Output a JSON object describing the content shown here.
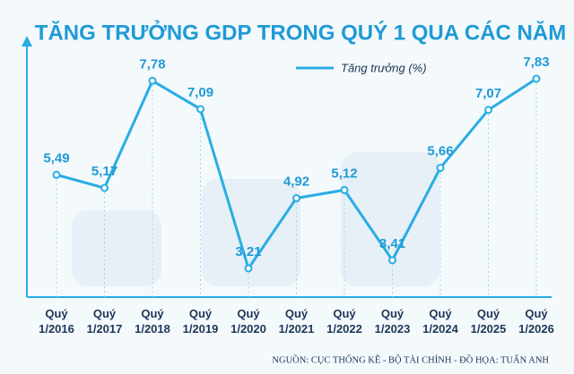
{
  "chart_data": {
    "type": "line",
    "title": "TĂNG TRƯỞNG GDP TRONG QUÝ 1 QUA CÁC NĂM",
    "categories": [
      "Quý 1/2016",
      "Quý 1/2017",
      "Quý 1/2018",
      "Quý 1/2019",
      "Quý 1/2020",
      "Quý 1/2021",
      "Quý 1/2022",
      "Quý 1/2023",
      "Quý 1/2024",
      "Quý 1/2025",
      "Quý 1/2026"
    ],
    "series": [
      {
        "name": "Tăng trưởng (%)",
        "color": "#29ade4",
        "values": [
          5.49,
          5.17,
          7.78,
          7.09,
          3.21,
          4.92,
          5.12,
          3.41,
          5.66,
          7.07,
          7.83
        ],
        "value_labels": [
          "5,49",
          "5,17",
          "7,78",
          "7,09",
          "3,21",
          "4,92",
          "5,12",
          "3,41",
          "5,66",
          "7,07",
          "7,83"
        ]
      }
    ],
    "source": "NGUỒN: CỤC THỐNG KÊ - BỘ TÀI CHÍNH - ĐỒ HỌA: TUẤN ANH"
  }
}
